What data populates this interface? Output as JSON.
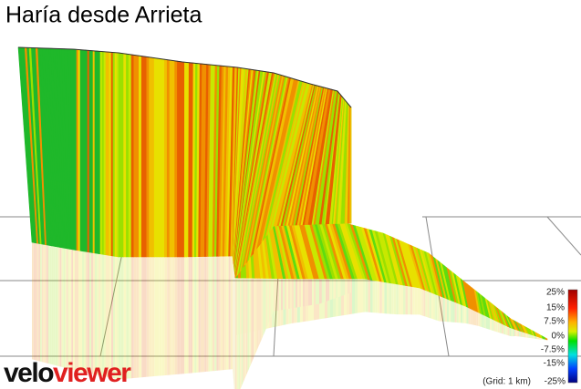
{
  "title": "Haría desde Arrieta",
  "legend": {
    "labels": [
      "25%",
      "15%",
      "7.5%",
      "0%",
      "-7.5%",
      "-15%",
      "-25%"
    ]
  },
  "grid_note": "(Grid: 1 km)",
  "logo": {
    "first": "velo",
    "second": "viewer"
  }
}
